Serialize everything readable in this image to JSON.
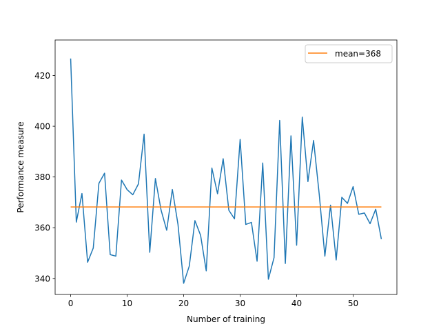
{
  "chart_data": {
    "type": "line",
    "xlabel": "Number of training",
    "ylabel": "Performance measure",
    "xlim": [
      -2.75,
      57.75
    ],
    "ylim": [
      333.7,
      434.0
    ],
    "xticks": [
      0,
      10,
      20,
      30,
      40,
      50
    ],
    "yticks": [
      340,
      360,
      380,
      400,
      420
    ],
    "grid": false,
    "legend_position": "top-right",
    "series": [
      {
        "color": "#1f77b4",
        "x": [
          0,
          1,
          2,
          3,
          4,
          5,
          6,
          7,
          8,
          9,
          10,
          11,
          12,
          13,
          14,
          15,
          16,
          17,
          18,
          19,
          20,
          21,
          22,
          23,
          24,
          25,
          26,
          27,
          28,
          29,
          30,
          31,
          32,
          33,
          34,
          35,
          36,
          37,
          38,
          39,
          40,
          41,
          42,
          43,
          44,
          45,
          46,
          47,
          48,
          49,
          50,
          51,
          52,
          53,
          54,
          55
        ],
        "values": [
          426.7,
          362.2,
          373.5,
          346.4,
          352.0,
          377.5,
          381.5,
          349.4,
          348.8,
          378.8,
          375.0,
          373.0,
          377.3,
          396.9,
          350.3,
          379.4,
          367.0,
          359.0,
          375.1,
          361.3,
          338.1,
          344.9,
          362.8,
          357.0,
          343.0,
          383.5,
          373.4,
          387.2,
          366.9,
          363.5,
          394.8,
          361.3,
          362.1,
          346.8,
          385.5,
          339.7,
          348.2,
          402.3,
          345.9,
          396.2,
          353.1,
          403.6,
          378.2,
          394.4,
          373.2,
          348.8,
          368.9,
          347.3,
          372.0,
          369.6,
          376.2,
          365.3,
          365.8,
          361.6,
          367.3,
          355.5
        ]
      },
      {
        "name": "mean=368",
        "color": "#ff7f0e",
        "x": [
          0,
          55
        ],
        "values": [
          368.2,
          368.2
        ]
      }
    ]
  }
}
